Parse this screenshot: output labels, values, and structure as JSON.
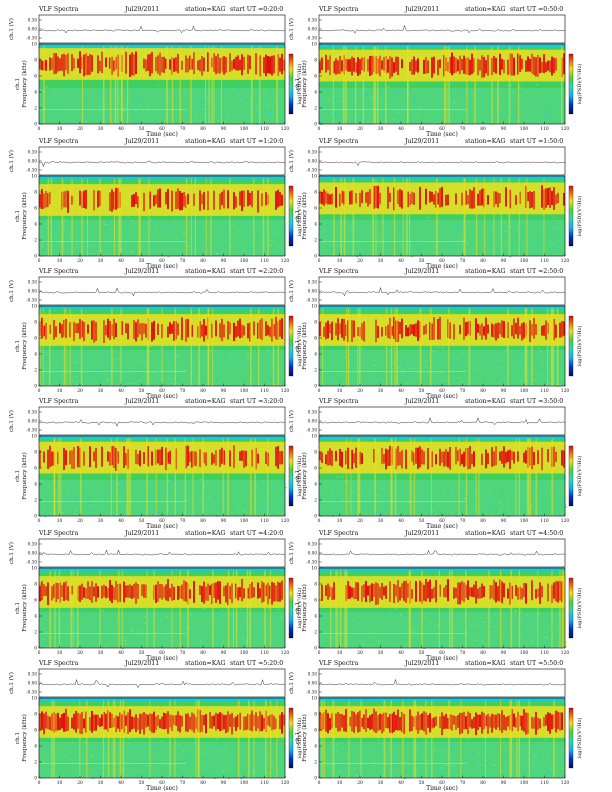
{
  "page": {
    "background": "#ffffff"
  },
  "labels": {
    "product": "VLF Spectra",
    "date": "Jul29/2011",
    "station": "station=KAG",
    "channel_label": "ch.1",
    "trace_ylabel": "ch.1 (V)",
    "ylabel": "Frequency (kHz)",
    "xlabel": "Time (sec)",
    "colorbar_label": "log(PSD)(V²/Hz)"
  },
  "colors": {
    "saturation": "#e01010",
    "high": "#f0e020",
    "mid": "#40d060",
    "low": "#30c8d8",
    "background_band": "#20c8d0"
  },
  "chart_data": [
    {
      "type": "heatmap",
      "panel": "row1-left",
      "title": "start UT =0:20:0",
      "x_ticks": [
        0,
        10,
        20,
        30,
        40,
        50,
        60,
        70,
        80,
        90,
        100,
        110,
        120
      ],
      "xlim": [
        0,
        120
      ],
      "ylim": [
        0,
        10
      ],
      "y_ticks": [
        0,
        2,
        4,
        6,
        8,
        10
      ],
      "trace_ticks": [
        "0.30",
        "0.00",
        "-0.30"
      ],
      "band_center_khz": 7.5,
      "band_intensity": 0.8,
      "cutoff_khz": 9.7
    },
    {
      "type": "heatmap",
      "panel": "row1-right",
      "title": "start UT =0:50:0",
      "x_ticks": [
        0,
        10,
        20,
        30,
        40,
        50,
        60,
        70,
        80,
        90,
        100,
        110,
        120
      ],
      "xlim": [
        0,
        120
      ],
      "ylim": [
        0,
        10
      ],
      "y_ticks": [
        0,
        2,
        4,
        6,
        8,
        10
      ],
      "trace_ticks": [
        "0.30",
        "0.00",
        "-0.30"
      ],
      "band_center_khz": 7.3,
      "band_intensity": 0.85,
      "cutoff_khz": 9.7
    },
    {
      "type": "heatmap",
      "panel": "row2-left",
      "title": "start UT =1:20:0",
      "x_ticks": [
        0,
        10,
        20,
        30,
        40,
        50,
        60,
        70,
        80,
        90,
        100,
        110,
        120
      ],
      "xlim": [
        0,
        120
      ],
      "ylim": [
        0,
        10
      ],
      "y_ticks": [
        0,
        2,
        4,
        6,
        8,
        10
      ],
      "trace_ticks": [
        "0.30",
        "0.00",
        "-0.30"
      ],
      "band_center_khz": 7.0,
      "band_intensity": 0.55,
      "cutoff_khz": 9.7
    },
    {
      "type": "heatmap",
      "panel": "row2-right",
      "title": "start UT =1:50:0",
      "x_ticks": [
        0,
        10,
        20,
        30,
        40,
        50,
        60,
        70,
        80,
        90,
        100,
        110,
        120
      ],
      "xlim": [
        0,
        120
      ],
      "ylim": [
        0,
        10
      ],
      "y_ticks": [
        0,
        2,
        4,
        6,
        8,
        10
      ],
      "trace_ticks": [
        "0.30",
        "0.00",
        "-0.30"
      ],
      "band_center_khz": 7.2,
      "band_intensity": 0.6,
      "cutoff_khz": 9.7
    },
    {
      "type": "heatmap",
      "panel": "row3-left",
      "title": "start UT =2:20:0",
      "x_ticks": [
        0,
        10,
        20,
        30,
        40,
        50,
        60,
        70,
        80,
        90,
        100,
        110,
        120
      ],
      "xlim": [
        0,
        120
      ],
      "ylim": [
        0,
        10
      ],
      "y_ticks": [
        0,
        2,
        4,
        6,
        8,
        10
      ],
      "trace_ticks": [
        "0.30",
        "0.00",
        "-0.30"
      ],
      "band_center_khz": 7.0,
      "band_intensity": 0.7,
      "cutoff_khz": 9.7
    },
    {
      "type": "heatmap",
      "panel": "row3-right",
      "title": "start UT =2:50:0",
      "x_ticks": [
        0,
        10,
        20,
        30,
        40,
        50,
        60,
        70,
        80,
        90,
        100,
        110,
        120
      ],
      "xlim": [
        0,
        120
      ],
      "ylim": [
        0,
        10
      ],
      "y_ticks": [
        0,
        2,
        4,
        6,
        8,
        10
      ],
      "trace_ticks": [
        "0.30",
        "0.00",
        "-0.30"
      ],
      "band_center_khz": 7.0,
      "band_intensity": 0.75,
      "cutoff_khz": 9.7
    },
    {
      "type": "heatmap",
      "panel": "row4-left",
      "title": "start UT =3:20:0",
      "x_ticks": [
        0,
        10,
        20,
        30,
        40,
        50,
        60,
        70,
        80,
        90,
        100,
        110,
        120
      ],
      "xlim": [
        0,
        120
      ],
      "ylim": [
        0,
        10
      ],
      "y_ticks": [
        0,
        2,
        4,
        6,
        8,
        10
      ],
      "trace_ticks": [
        "0.30",
        "0.00",
        "-0.30"
      ],
      "band_center_khz": 7.3,
      "band_intensity": 0.6,
      "cutoff_khz": 9.7
    },
    {
      "type": "heatmap",
      "panel": "row4-right",
      "title": "start UT =3:50:0",
      "x_ticks": [
        0,
        10,
        20,
        30,
        40,
        50,
        60,
        70,
        80,
        90,
        100,
        110,
        120
      ],
      "xlim": [
        0,
        120
      ],
      "ylim": [
        0,
        10
      ],
      "y_ticks": [
        0,
        2,
        4,
        6,
        8,
        10
      ],
      "trace_ticks": [
        "0.30",
        "0.00",
        "-0.30"
      ],
      "band_center_khz": 7.3,
      "band_intensity": 0.65,
      "cutoff_khz": 9.7
    },
    {
      "type": "heatmap",
      "panel": "row5-left",
      "title": "start UT =4:20:0",
      "x_ticks": [
        0,
        10,
        20,
        30,
        40,
        50,
        60,
        70,
        80,
        90,
        100,
        110,
        120
      ],
      "xlim": [
        0,
        120
      ],
      "ylim": [
        0,
        10
      ],
      "y_ticks": [
        0,
        2,
        4,
        6,
        8,
        10
      ],
      "trace_ticks": [
        "0.30",
        "0.00",
        "-0.30"
      ],
      "band_center_khz": 7.0,
      "band_intensity": 0.8,
      "cutoff_khz": 9.7
    },
    {
      "type": "heatmap",
      "panel": "row5-right",
      "title": "start UT =4:50:0",
      "x_ticks": [
        0,
        10,
        20,
        30,
        40,
        50,
        60,
        70,
        80,
        90,
        100,
        110,
        120
      ],
      "xlim": [
        0,
        120
      ],
      "ylim": [
        0,
        10
      ],
      "y_ticks": [
        0,
        2,
        4,
        6,
        8,
        10
      ],
      "trace_ticks": [
        "0.30",
        "0.00",
        "-0.30"
      ],
      "band_center_khz": 7.0,
      "band_intensity": 0.8,
      "cutoff_khz": 9.7
    },
    {
      "type": "heatmap",
      "panel": "row6-left",
      "title": "start UT =5:20:0",
      "x_ticks": [
        0,
        10,
        20,
        30,
        40,
        50,
        60,
        70,
        80,
        90,
        100,
        110,
        120
      ],
      "xlim": [
        0,
        120
      ],
      "ylim": [
        0,
        10
      ],
      "y_ticks": [
        0,
        2,
        4,
        6,
        8,
        10
      ],
      "trace_ticks": [
        "0.30",
        "0.00",
        "-0.30"
      ],
      "band_center_khz": 7.0,
      "band_intensity": 0.95,
      "cutoff_khz": 9.7
    },
    {
      "type": "heatmap",
      "panel": "row6-right",
      "title": "start UT =5:50:0",
      "x_ticks": [
        0,
        10,
        20,
        30,
        40,
        50,
        60,
        70,
        80,
        90,
        100,
        110,
        120
      ],
      "xlim": [
        0,
        120
      ],
      "ylim": [
        0,
        10
      ],
      "y_ticks": [
        0,
        2,
        4,
        6,
        8,
        10
      ],
      "trace_ticks": [
        "0.30",
        "0.00",
        "-0.30"
      ],
      "band_center_khz": 7.0,
      "band_intensity": 0.95,
      "cutoff_khz": 9.7
    }
  ]
}
